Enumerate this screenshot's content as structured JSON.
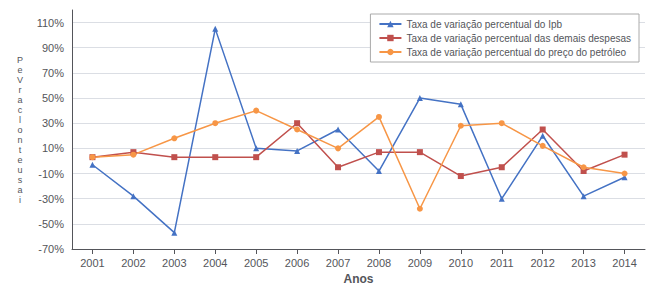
{
  "chart_data": {
    "type": "line",
    "xlabel": "Anos",
    "ylabel": "P\ne\nV\nr\na\nc\nl\no\nn\nt\ne\nu\ns\na\ni",
    "x": [
      2001,
      2002,
      2003,
      2004,
      2005,
      2006,
      2007,
      2008,
      2009,
      2010,
      2011,
      2012,
      2013,
      2014
    ],
    "series": [
      {
        "name": "Taxa de variação percentual do Ipb",
        "color": "#4472C4",
        "marker": "triangle",
        "values": [
          -3,
          -28,
          -57,
          105,
          10,
          8,
          25,
          -8,
          50,
          45,
          -30,
          20,
          -28,
          -13
        ]
      },
      {
        "name": "Taxa de variação percentual das demais despesas",
        "color": "#C0504D",
        "marker": "square",
        "values": [
          3,
          7,
          3,
          3,
          3,
          30,
          -5,
          7,
          7,
          -12,
          -5,
          25,
          -8,
          5
        ]
      },
      {
        "name": "Taxa de variação percentual do preço do petróleo",
        "color": "#F79646",
        "marker": "circle",
        "values": [
          3,
          5,
          18,
          30,
          40,
          25,
          10,
          35,
          -38,
          28,
          30,
          12,
          -5,
          -10
        ]
      }
    ],
    "xlim": [
      2000.5,
      2014.5
    ],
    "xticks": [
      2001,
      2002,
      2003,
      2004,
      2005,
      2006,
      2007,
      2008,
      2009,
      2010,
      2011,
      2012,
      2013,
      2014
    ],
    "ylim": [
      -70,
      120
    ],
    "yticks": [
      {
        "value": -70,
        "label": "-70%"
      },
      {
        "value": -50,
        "label": "-50%"
      },
      {
        "value": -30,
        "label": "-30%"
      },
      {
        "value": -10,
        "label": "-10%"
      },
      {
        "value": 10,
        "label": "10%"
      },
      {
        "value": 30,
        "label": "30%"
      },
      {
        "value": 50,
        "label": "50%"
      },
      {
        "value": 70,
        "label": "70%"
      },
      {
        "value": 90,
        "label": "90%"
      },
      {
        "value": 110,
        "label": "110%"
      }
    ],
    "grid": true,
    "legend": "upper right"
  }
}
